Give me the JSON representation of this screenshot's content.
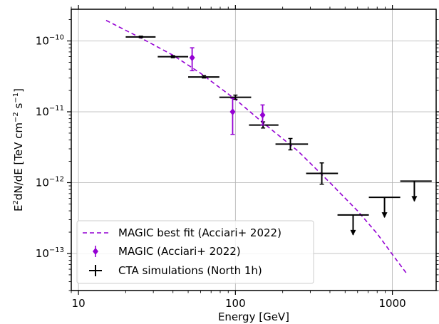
{
  "chart_data": {
    "type": "scatter",
    "xlabel": "Energy [GeV]",
    "ylabel_parts": [
      "E",
      "2",
      "dN/dE [TeV cm",
      "−2",
      " s",
      "−1",
      "]"
    ],
    "x_scale": "log",
    "y_scale": "log",
    "xlim": [
      9,
      1900
    ],
    "ylim": [
      3e-14,
      2.8e-10
    ],
    "x_ticks": [
      10,
      100,
      1000
    ],
    "x_tick_labels": [
      "10",
      "100",
      "1000"
    ],
    "y_ticks": [
      1e-13,
      1e-12,
      1e-11,
      1e-10
    ],
    "y_tick_base": "10",
    "y_tick_exponents": [
      "−13",
      "−12",
      "−11",
      "−10"
    ],
    "grid": true,
    "legend_position": "lower-left",
    "colors": {
      "fit": "#9400d3",
      "magic": "#9400d3",
      "cta": "#000000"
    },
    "series": [
      {
        "name": "MAGIC best fit (Acciari+ 2022)",
        "kind": "line",
        "style": "dashed",
        "points": [
          [
            15,
            1.95e-10
          ],
          [
            25,
            1.1e-10
          ],
          [
            40,
            6.3e-11
          ],
          [
            60,
            3.5e-11
          ],
          [
            100,
            1.5e-11
          ],
          [
            150,
            7e-12
          ],
          [
            250,
            2.8e-12
          ],
          [
            400,
            1e-12
          ],
          [
            600,
            4e-13
          ],
          [
            800,
            1.9e-13
          ],
          [
            1000,
            9.7e-14
          ],
          [
            1250,
            5e-14
          ]
        ]
      },
      {
        "name": "MAGIC (Acciari+ 2022)",
        "kind": "points",
        "marker": "diamond",
        "points": [
          {
            "x": 53,
            "y": 5.8e-11,
            "ylo": 3.8e-11,
            "yhi": 8e-11
          },
          {
            "x": 96,
            "y": 1e-11,
            "ylo": 4.8e-12,
            "yhi": 1.55e-11
          },
          {
            "x": 149,
            "y": 9e-12,
            "ylo": 6.5e-12,
            "yhi": 1.25e-11
          }
        ]
      },
      {
        "name": "CTA simulations (North 1h)",
        "kind": "points",
        "marker": "cross",
        "points": [
          {
            "x": 25,
            "xlo": 20,
            "xhi": 31,
            "y": 1.14e-10,
            "ylo": 1.11e-10,
            "yhi": 1.17e-10
          },
          {
            "x": 40,
            "xlo": 32,
            "xhi": 50,
            "y": 6e-11,
            "ylo": 5.8e-11,
            "yhi": 6.2e-11
          },
          {
            "x": 63,
            "xlo": 50,
            "xhi": 79,
            "y": 3.1e-11,
            "ylo": 3e-11,
            "yhi": 3.25e-11
          },
          {
            "x": 100,
            "xlo": 79,
            "xhi": 126,
            "y": 1.6e-11,
            "ylo": 1.5e-11,
            "yhi": 1.72e-11
          },
          {
            "x": 150,
            "xlo": 122,
            "xhi": 188,
            "y": 6.5e-12,
            "ylo": 5.9e-12,
            "yhi": 7.2e-12
          },
          {
            "x": 224,
            "xlo": 180,
            "xhi": 290,
            "y": 3.5e-12,
            "ylo": 2.9e-12,
            "yhi": 4.2e-12
          },
          {
            "x": 355,
            "xlo": 282,
            "xhi": 450,
            "y": 1.35e-12,
            "ylo": 9.5e-13,
            "yhi": 1.9e-12
          },
          {
            "x": 562,
            "xlo": 447,
            "xhi": 708,
            "y": 3.5e-13,
            "upper_limit": true
          },
          {
            "x": 891,
            "xlo": 708,
            "xhi": 1122,
            "y": 6.2e-13,
            "upper_limit": true
          },
          {
            "x": 1380,
            "xlo": 1122,
            "xhi": 1780,
            "y": 1.05e-12,
            "upper_limit": true
          }
        ]
      }
    ]
  }
}
